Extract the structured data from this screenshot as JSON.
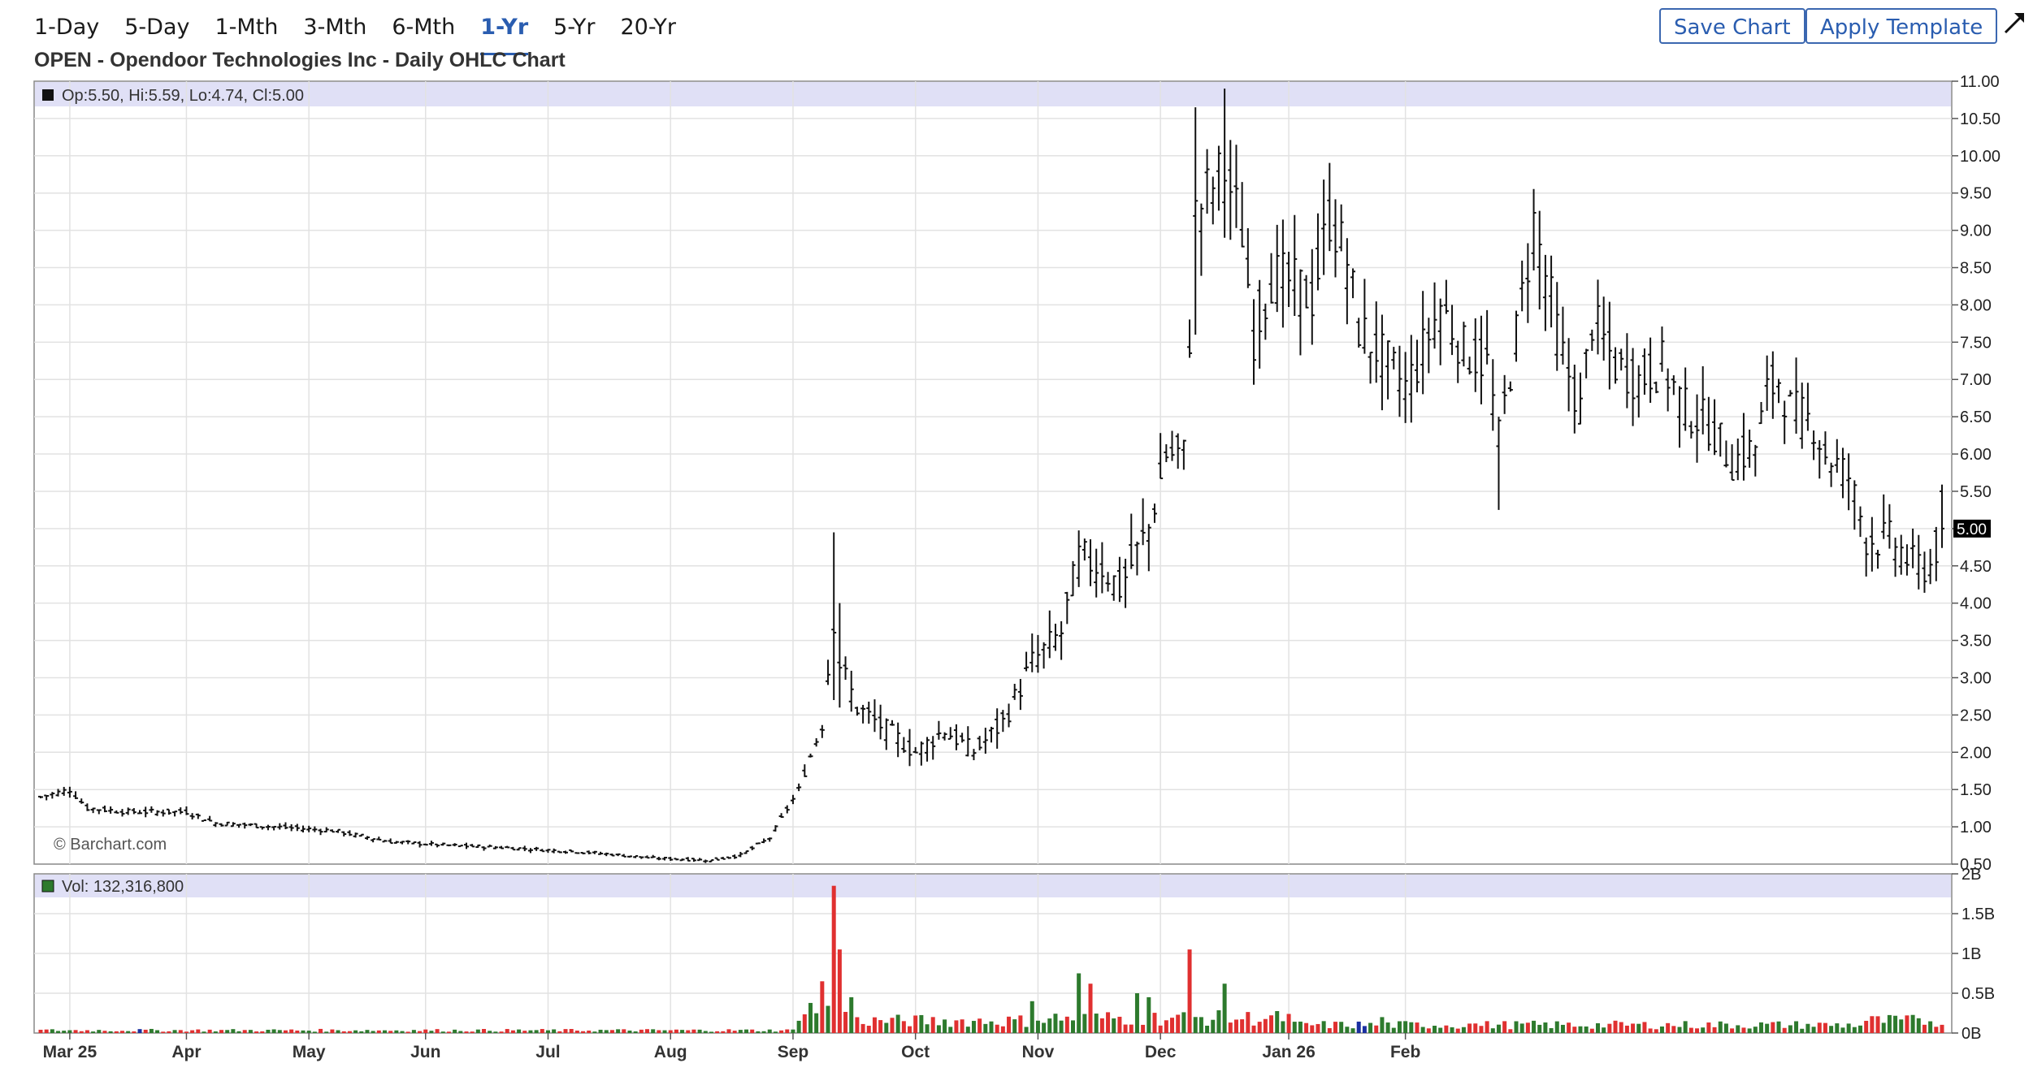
{
  "toolbar": {
    "ranges": [
      "1-Day",
      "5-Day",
      "1-Mth",
      "3-Mth",
      "6-Mth",
      "1-Yr",
      "5-Yr",
      "20-Yr"
    ],
    "active_range": "1-Yr",
    "save_label": "Save Chart",
    "apply_label": "Apply Template",
    "expand_icon": "expand-arrow-icon"
  },
  "chart_title": "OPEN - Opendoor Technologies Inc - Daily OHLC Chart",
  "chart_data": [
    {
      "type": "ohlc",
      "panel": "price",
      "legend": "Op:5.50, Hi:5.59, Lo:4.74, Cl:5.00",
      "last_price_label": "5.00",
      "watermark": "© Barchart.com",
      "ylim": [
        0.5,
        11.0
      ],
      "yticks": [
        "11.00",
        "10.50",
        "10.00",
        "9.50",
        "9.00",
        "8.50",
        "8.00",
        "7.50",
        "7.00",
        "6.50",
        "6.00",
        "5.50",
        "5.00",
        "4.50",
        "4.00",
        "3.50",
        "3.00",
        "2.50",
        "2.00",
        "1.50",
        "1.00",
        "0.50"
      ],
      "x_months": [
        "Mar 25",
        "Apr",
        "May",
        "Jun",
        "Jul",
        "Aug",
        "Sep",
        "Oct",
        "Nov",
        "Dec",
        "Jan 26",
        "Feb"
      ],
      "anchors": [
        [
          0,
          1.4
        ],
        [
          5,
          1.5
        ],
        [
          8,
          1.25
        ],
        [
          15,
          1.2
        ],
        [
          25,
          1.2
        ],
        [
          30,
          1.05
        ],
        [
          40,
          1.0
        ],
        [
          50,
          0.95
        ],
        [
          60,
          0.8
        ],
        [
          70,
          0.75
        ],
        [
          80,
          0.72
        ],
        [
          95,
          0.65
        ],
        [
          105,
          0.58
        ],
        [
          115,
          0.55
        ],
        [
          120,
          0.62
        ],
        [
          125,
          0.85
        ],
        [
          130,
          1.5
        ],
        [
          134,
          2.4
        ],
        [
          136,
          3.8
        ],
        [
          137,
          3.2
        ],
        [
          140,
          2.6
        ],
        [
          145,
          2.3
        ],
        [
          150,
          2.0
        ],
        [
          155,
          2.3
        ],
        [
          160,
          2.0
        ],
        [
          165,
          2.4
        ],
        [
          170,
          3.2
        ],
        [
          175,
          3.6
        ],
        [
          178,
          4.6
        ],
        [
          182,
          4.5
        ],
        [
          185,
          4.2
        ],
        [
          190,
          5.0
        ],
        [
          193,
          6.0
        ],
        [
          196,
          6.0
        ],
        [
          198,
          9.2
        ],
        [
          200,
          9.5
        ],
        [
          203,
          9.8
        ],
        [
          206,
          9.0
        ],
        [
          208,
          7.6
        ],
        [
          211,
          8.4
        ],
        [
          214,
          8.3
        ],
        [
          218,
          8.1
        ],
        [
          221,
          9.2
        ],
        [
          224,
          8.6
        ],
        [
          226,
          7.7
        ],
        [
          230,
          7.3
        ],
        [
          234,
          6.9
        ],
        [
          236,
          7.2
        ],
        [
          240,
          8.0
        ],
        [
          244,
          7.4
        ],
        [
          248,
          7.2
        ],
        [
          250,
          6.2
        ],
        [
          253,
          7.6
        ],
        [
          256,
          9.1
        ],
        [
          258,
          8.4
        ],
        [
          261,
          7.3
        ],
        [
          264,
          6.6
        ],
        [
          266,
          7.8
        ],
        [
          270,
          7.2
        ],
        [
          274,
          7.0
        ],
        [
          278,
          7.2
        ],
        [
          282,
          6.6
        ],
        [
          286,
          6.4
        ],
        [
          290,
          5.9
        ],
        [
          294,
          6.1
        ],
        [
          296,
          6.8
        ],
        [
          298,
          7.0
        ],
        [
          300,
          6.6
        ],
        [
          304,
          6.4
        ],
        [
          306,
          6.0
        ],
        [
          310,
          5.7
        ],
        [
          313,
          4.9
        ],
        [
          318,
          4.8
        ],
        [
          321,
          4.5
        ],
        [
          324,
          4.5
        ],
        [
          326,
          5.0
        ]
      ],
      "volume_panel": {
        "legend": "Vol: 132,316,800",
        "ylim": [
          0,
          2.0
        ],
        "yticks": [
          "2B",
          "1.5B",
          "1B",
          "0.5B",
          "0B"
        ],
        "spikes": [
          [
            134,
            0.65
          ],
          [
            136,
            1.85
          ],
          [
            137,
            1.05
          ],
          [
            139,
            0.45
          ],
          [
            170,
            0.4
          ],
          [
            178,
            0.75
          ],
          [
            180,
            0.62
          ],
          [
            188,
            0.5
          ],
          [
            190,
            0.45
          ],
          [
            197,
            1.05
          ],
          [
            203,
            0.62
          ],
          [
            230,
            0.2
          ],
          [
            246,
            0.12
          ]
        ]
      }
    }
  ]
}
